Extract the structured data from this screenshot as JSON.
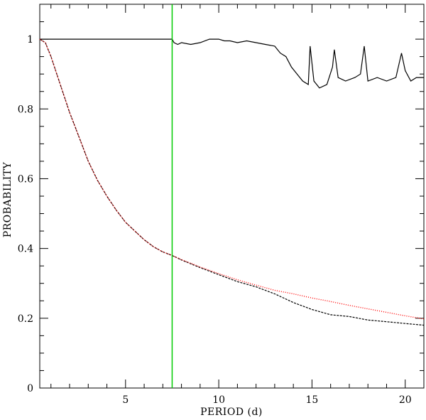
{
  "chart_data": {
    "type": "line",
    "title": "",
    "xlabel": "PERIOD (d)",
    "ylabel": "PROBABILITY",
    "xlim": [
      0.4,
      21.0
    ],
    "ylim": [
      0,
      1.1
    ],
    "xticks": [
      5,
      10,
      15,
      20
    ],
    "xtick_labels": [
      "5",
      "10",
      "15",
      "20"
    ],
    "yticks": [
      0,
      0.2,
      0.4,
      0.6,
      0.8,
      1
    ],
    "ytick_labels": [
      "0",
      "0.2",
      "0.4",
      "0.6",
      "0.8",
      "1"
    ],
    "grid": false,
    "legend": "none",
    "vertical_marker": {
      "x": 7.5,
      "color": "#00cc00"
    },
    "series": [
      {
        "color": "#000000",
        "style": "solid",
        "x": [
          0.4,
          1,
          2,
          3,
          4,
          5,
          6,
          7,
          7.5,
          7.6,
          7.8,
          8,
          8.5,
          9,
          9.5,
          10,
          10.3,
          10.6,
          11,
          11.5,
          12,
          12.5,
          13,
          13.3,
          13.6,
          13.9,
          14.2,
          14.5,
          14.8,
          14.9,
          15.1,
          15.4,
          15.8,
          16.1,
          16.2,
          16.4,
          16.8,
          17.3,
          17.6,
          17.8,
          18.0,
          18.5,
          19.0,
          19.5,
          19.8,
          20.0,
          20.3,
          20.6,
          21.0
        ],
        "values": [
          1.0,
          1.0,
          1.0,
          1.0,
          1.0,
          1.0,
          1.0,
          1.0,
          1.0,
          0.99,
          0.985,
          0.99,
          0.985,
          0.99,
          1.0,
          1.0,
          0.995,
          0.995,
          0.99,
          0.995,
          0.99,
          0.985,
          0.98,
          0.96,
          0.95,
          0.92,
          0.9,
          0.88,
          0.87,
          0.98,
          0.88,
          0.86,
          0.87,
          0.92,
          0.97,
          0.89,
          0.88,
          0.89,
          0.9,
          0.98,
          0.88,
          0.89,
          0.88,
          0.89,
          0.96,
          0.91,
          0.88,
          0.89,
          0.89
        ]
      },
      {
        "color": "#000000",
        "style": "dashed",
        "x": [
          0.4,
          0.7,
          1,
          1.5,
          2,
          2.5,
          3,
          3.5,
          4,
          4.5,
          5,
          5.5,
          6,
          6.5,
          7,
          7.5,
          8,
          9,
          10,
          11,
          12,
          13,
          14,
          15,
          16,
          17,
          18,
          19,
          20,
          21
        ],
        "values": [
          1.0,
          0.99,
          0.95,
          0.87,
          0.79,
          0.72,
          0.65,
          0.595,
          0.55,
          0.51,
          0.475,
          0.45,
          0.425,
          0.405,
          0.39,
          0.38,
          0.367,
          0.345,
          0.325,
          0.305,
          0.29,
          0.27,
          0.245,
          0.225,
          0.21,
          0.205,
          0.195,
          0.19,
          0.185,
          0.18
        ]
      },
      {
        "color": "#ff0000",
        "style": "dotted",
        "x": [
          0.4,
          0.7,
          1,
          1.5,
          2,
          2.5,
          3,
          3.5,
          4,
          4.5,
          5,
          5.5,
          6,
          6.5,
          7,
          7.5,
          8,
          9,
          10,
          11,
          12,
          13,
          14,
          15,
          16,
          17,
          18,
          19,
          20,
          21
        ],
        "values": [
          1.0,
          0.99,
          0.95,
          0.87,
          0.79,
          0.72,
          0.65,
          0.595,
          0.55,
          0.51,
          0.475,
          0.45,
          0.425,
          0.405,
          0.39,
          0.38,
          0.368,
          0.347,
          0.328,
          0.31,
          0.295,
          0.28,
          0.27,
          0.258,
          0.248,
          0.237,
          0.227,
          0.217,
          0.207,
          0.198
        ]
      }
    ]
  }
}
